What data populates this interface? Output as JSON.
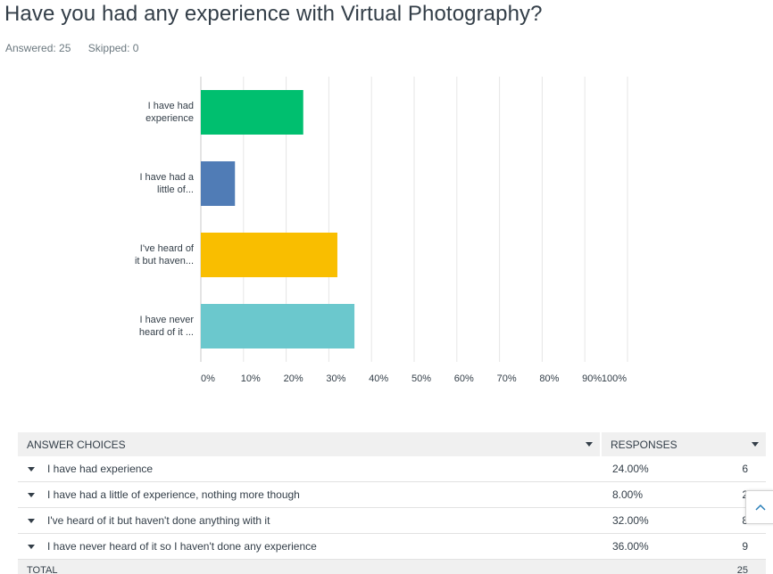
{
  "question": {
    "title": "Have you had any experience with Virtual Photography?",
    "answered": "Answered: 25",
    "skipped": "Skipped: 0"
  },
  "chart_data": {
    "type": "bar",
    "orientation": "horizontal",
    "categories": [
      "I have had experience",
      "I have had a little of...",
      "I've heard of it but haven...",
      "I have never heard of it ..."
    ],
    "category_label_lines": [
      [
        "I have had",
        "experience"
      ],
      [
        "I have had a",
        "little of..."
      ],
      [
        "I've heard of",
        "it but haven..."
      ],
      [
        "I have never",
        "heard of it ..."
      ]
    ],
    "values": [
      24,
      8,
      32,
      36
    ],
    "colors": [
      "#00bf6f",
      "#507cb6",
      "#f9be00",
      "#6bc8cd"
    ],
    "xlim": [
      0,
      100
    ],
    "ticks": [
      "0%",
      "10%",
      "20%",
      "30%",
      "40%",
      "50%",
      "60%",
      "70%",
      "80%",
      "90%",
      "100%"
    ],
    "grid": true
  },
  "table": {
    "header_choices": "ANSWER CHOICES",
    "header_responses": "RESPONSES",
    "rows": [
      {
        "choice": "I have had experience",
        "percent": "24.00%",
        "count": "6"
      },
      {
        "choice": "I have had a little of experience, nothing more though",
        "percent": "8.00%",
        "count": "2"
      },
      {
        "choice": "I've heard of it but haven't done anything with it",
        "percent": "32.00%",
        "count": "8"
      },
      {
        "choice": "I have never heard of it so I haven't done any experience",
        "percent": "36.00%",
        "count": "9"
      }
    ],
    "total_label": "TOTAL",
    "total_value": "25"
  },
  "icons": {
    "sort_caret": "caret-down-icon",
    "row_caret": "caret-down-icon",
    "scroll_top": "chevron-up-icon"
  }
}
